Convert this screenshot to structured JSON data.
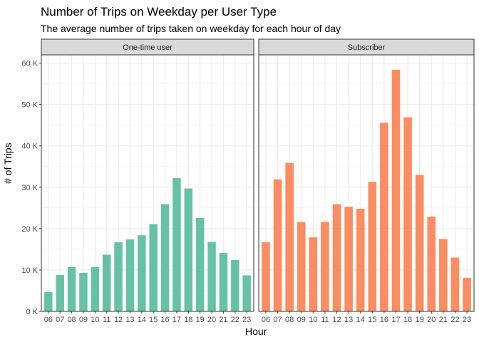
{
  "chart_data": {
    "type": "bar",
    "title": "Number of Trips on Weekday per User Type",
    "subtitle": "The average number of trips taken on weekday for each hour of day",
    "xlabel": "Hour",
    "ylabel": "# of Trips",
    "ylim": [
      0,
      62000
    ],
    "yticks": [
      0,
      10000,
      20000,
      30000,
      40000,
      50000,
      60000
    ],
    "ytick_labels": [
      "0 K",
      "10 K",
      "20 K",
      "30 K",
      "40 K",
      "50 K",
      "60 K"
    ],
    "categories": [
      "06",
      "07",
      "08",
      "09",
      "10",
      "11",
      "12",
      "13",
      "14",
      "15",
      "16",
      "17",
      "18",
      "19",
      "20",
      "21",
      "22",
      "23"
    ],
    "grid": true,
    "legend": "none",
    "facets": [
      {
        "name": "One-time user",
        "color": "#66c2a5",
        "values": [
          4700,
          8800,
          10700,
          9300,
          10700,
          13700,
          16700,
          17400,
          18400,
          21100,
          25900,
          32200,
          29700,
          22600,
          16800,
          14100,
          12400,
          8700
        ]
      },
      {
        "name": "Subscriber",
        "color": "#fc8d62",
        "values": [
          16700,
          31900,
          35900,
          21600,
          17900,
          21600,
          25900,
          25300,
          24800,
          31300,
          45600,
          58400,
          46900,
          33000,
          22900,
          17500,
          13000,
          8100
        ]
      }
    ]
  }
}
